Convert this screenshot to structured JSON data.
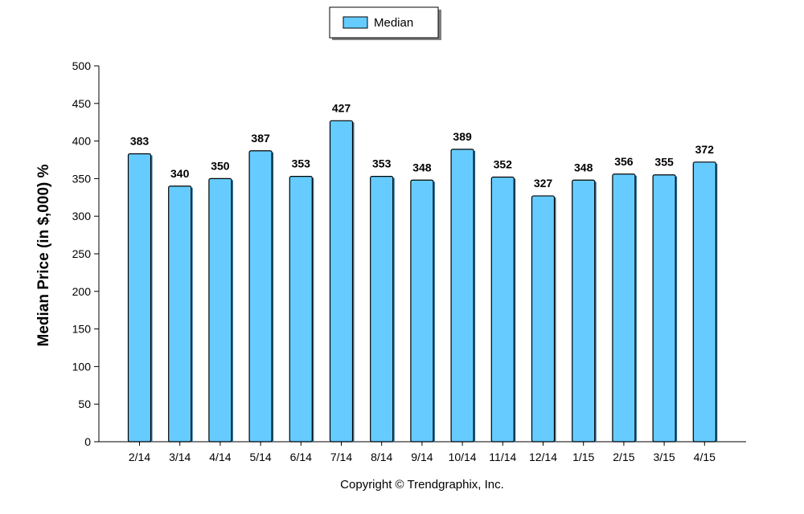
{
  "chart_data": {
    "type": "bar",
    "categories": [
      "2/14",
      "3/14",
      "4/14",
      "5/14",
      "6/14",
      "7/14",
      "8/14",
      "9/14",
      "10/14",
      "11/14",
      "12/14",
      "1/15",
      "2/15",
      "3/15",
      "4/15"
    ],
    "series": [
      {
        "name": "Median",
        "values": [
          383,
          340,
          350,
          387,
          353,
          427,
          353,
          348,
          389,
          352,
          327,
          348,
          356,
          355,
          372
        ]
      }
    ],
    "ylabel": "Median Price (in $,000) %",
    "xlabel": "",
    "ylim": [
      0,
      500
    ],
    "yticks": [
      0,
      50,
      100,
      150,
      200,
      250,
      300,
      350,
      400,
      450,
      500
    ],
    "legend_position": "top-center",
    "grid": false,
    "bar_color": "#66CCFF",
    "bar_outline_color": "#000000"
  },
  "footer": {
    "copyright": "Copyright © Trendgraphix, Inc."
  }
}
